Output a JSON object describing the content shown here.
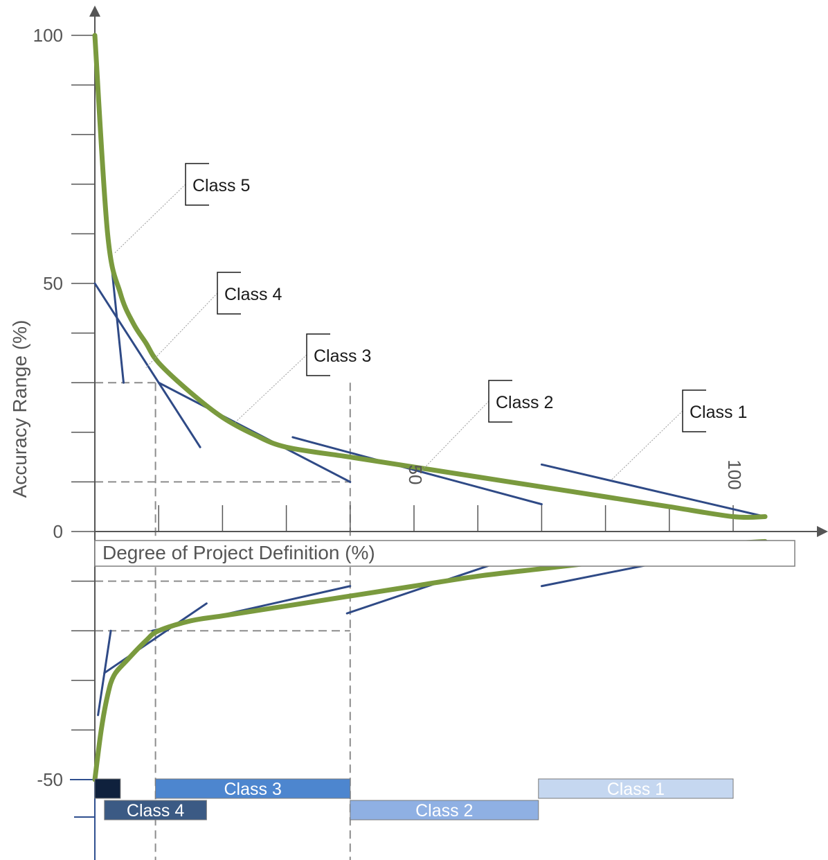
{
  "chart_data": {
    "type": "line",
    "xlabel": "Degree of Project Definition (%)",
    "ylabel": "Accuracy Range (%)",
    "xlim": [
      0,
      112
    ],
    "ylim": [
      -50,
      100
    ],
    "x_ticks": [
      10,
      20,
      30,
      40,
      50,
      60,
      70,
      80,
      90,
      100
    ],
    "x_tick_labels": [
      {
        "value": 50,
        "label": "50"
      },
      {
        "value": 100,
        "label": "100"
      }
    ],
    "y_ticks": [
      100,
      90,
      80,
      70,
      60,
      50,
      40,
      30,
      20,
      10,
      0,
      -10,
      -20,
      -30,
      -40,
      -50
    ],
    "y_tick_labels": [
      {
        "value": 100,
        "label": "100"
      },
      {
        "value": 50,
        "label": "50"
      },
      {
        "value": 0,
        "label": "0"
      },
      {
        "value": -50,
        "label": "-50"
      }
    ],
    "series": [
      {
        "role": "upper-envelope",
        "color": "#7a9a3e",
        "x": [
          0,
          2,
          4,
          6,
          8,
          10,
          15,
          20,
          25,
          30,
          40,
          50,
          60,
          70,
          80,
          90,
          100,
          105
        ],
        "y": [
          100,
          60,
          48,
          42,
          38,
          34,
          28,
          23,
          19.5,
          17,
          15,
          13,
          11,
          9,
          7,
          5,
          3,
          3
        ]
      },
      {
        "role": "lower-envelope",
        "color": "#7a9a3e",
        "x": [
          0,
          1,
          2,
          3,
          5,
          8,
          10,
          15,
          20,
          30,
          40,
          50,
          60,
          70,
          80,
          90,
          100,
          105
        ],
        "y": [
          -50,
          -40,
          -33,
          -29,
          -26,
          -22,
          -20,
          -18,
          -17,
          -15,
          -13,
          -11,
          -9,
          -7.5,
          -6,
          -4.5,
          -2.5,
          -2
        ]
      }
    ],
    "class_segments": [
      {
        "class": "Class 5",
        "upper": {
          "from": [
            2.5,
            55
          ],
          "to": [
            4.5,
            30
          ]
        },
        "lower": {
          "from": [
            0.5,
            -37
          ],
          "to": [
            2.5,
            -20
          ]
        }
      },
      {
        "class": "Class 4",
        "upper": {
          "from": [
            0,
            50
          ],
          "to": [
            16.5,
            17
          ]
        },
        "lower": {
          "from": [
            1.5,
            -28.5
          ],
          "to": [
            17.5,
            -14.5
          ]
        }
      },
      {
        "class": "Class 3",
        "upper": {
          "from": [
            10,
            30
          ],
          "to": [
            40,
            10
          ]
        },
        "lower": {
          "from": [
            9,
            -20
          ],
          "to": [
            40,
            -11
          ]
        }
      },
      {
        "class": "Class 2",
        "upper": {
          "from": [
            31,
            19
          ],
          "to": [
            70,
            5.5
          ]
        },
        "lower": {
          "from": [
            39.5,
            -16.5
          ],
          "to": [
            69.5,
            -3.5
          ]
        }
      },
      {
        "class": "Class 1",
        "upper": {
          "from": [
            70,
            13.5
          ],
          "to": [
            105,
            3
          ]
        },
        "lower": {
          "from": [
            70,
            -11
          ],
          "to": [
            105,
            -2
          ]
        }
      }
    ],
    "reference_lines": {
      "vertical_x": [
        9.5,
        40
      ],
      "horizontal_y": [
        30,
        10,
        -10,
        -20
      ]
    },
    "callouts": [
      {
        "label": "Class 5",
        "target": [
          3,
          56
        ]
      },
      {
        "label": "Class 4",
        "target": [
          8,
          33
        ]
      },
      {
        "label": "Class 3",
        "target": [
          22,
          22
        ]
      },
      {
        "label": "Class 2",
        "target": [
          51,
          12
        ]
      },
      {
        "label": "Class 1",
        "target": [
          81,
          10.5
        ]
      }
    ],
    "range_bars": [
      {
        "label": "",
        "row": 1,
        "start": 0,
        "end": 4,
        "color": "#0f213d"
      },
      {
        "label": "Class 4",
        "row": 2,
        "start": 1.5,
        "end": 17.5,
        "color": "#3b5a84"
      },
      {
        "label": "Class 3",
        "row": 1,
        "start": 9.5,
        "end": 40,
        "color": "#4d86cf"
      },
      {
        "label": "Class 2",
        "row": 2,
        "start": 40,
        "end": 69.5,
        "color": "#8fb0e3"
      },
      {
        "label": "Class 1",
        "row": 1,
        "start": 69.5,
        "end": 100,
        "color": "#c5d7f0"
      }
    ]
  }
}
